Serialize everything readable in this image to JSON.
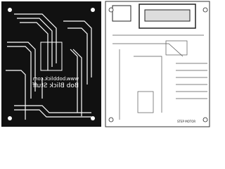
{
  "left_board": {
    "texts": [
      "www.bobblick.com",
      "Bob Blick Stuff"
    ]
  },
  "right_board": {
    "texts": [
      "STEP MOTOR"
    ]
  }
}
